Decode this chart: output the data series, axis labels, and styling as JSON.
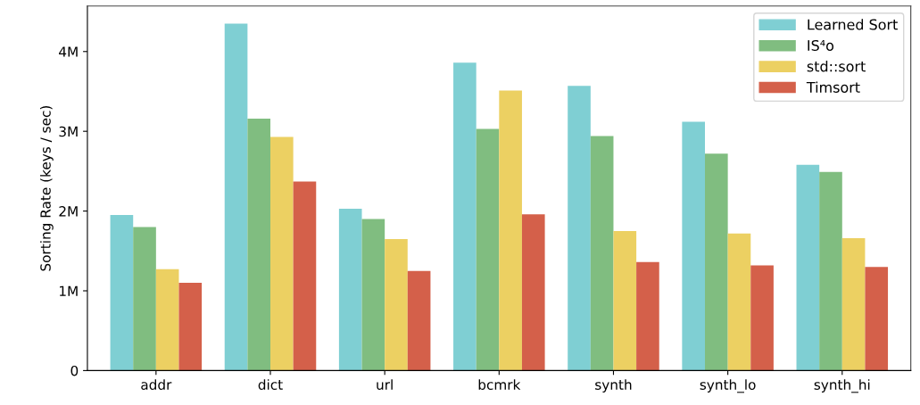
{
  "chart_data": {
    "type": "bar",
    "ylabel": "Sorting Rate (keys / sec)",
    "categories": [
      "addr",
      "dict",
      "url",
      "bcmrk",
      "synth",
      "synth_lo",
      "synth_hi"
    ],
    "series": [
      {
        "name": "Learned Sort",
        "color": "#7fcfd3",
        "values": [
          1.95,
          4.35,
          2.03,
          3.86,
          3.57,
          3.12,
          2.58
        ]
      },
      {
        "name": "IS⁴o",
        "color": "#80bd80",
        "values": [
          1.8,
          3.16,
          1.9,
          3.03,
          2.94,
          2.72,
          2.49
        ]
      },
      {
        "name": "std::sort",
        "color": "#ecd062",
        "values": [
          1.27,
          2.93,
          1.65,
          3.51,
          1.75,
          1.72,
          1.66
        ]
      },
      {
        "name": "Timsort",
        "color": "#d4604a",
        "values": [
          1.1,
          2.37,
          1.25,
          1.96,
          1.36,
          1.32,
          1.3
        ]
      }
    ],
    "ylim": [
      0,
      4.57
    ],
    "yticks": [
      0,
      {
        "value": 1,
        "label": "1M"
      },
      {
        "value": 2,
        "label": "2M"
      },
      {
        "value": 3,
        "label": "3M"
      },
      {
        "value": 4,
        "label": "4M"
      }
    ],
    "legend": "top right",
    "grid": false
  }
}
